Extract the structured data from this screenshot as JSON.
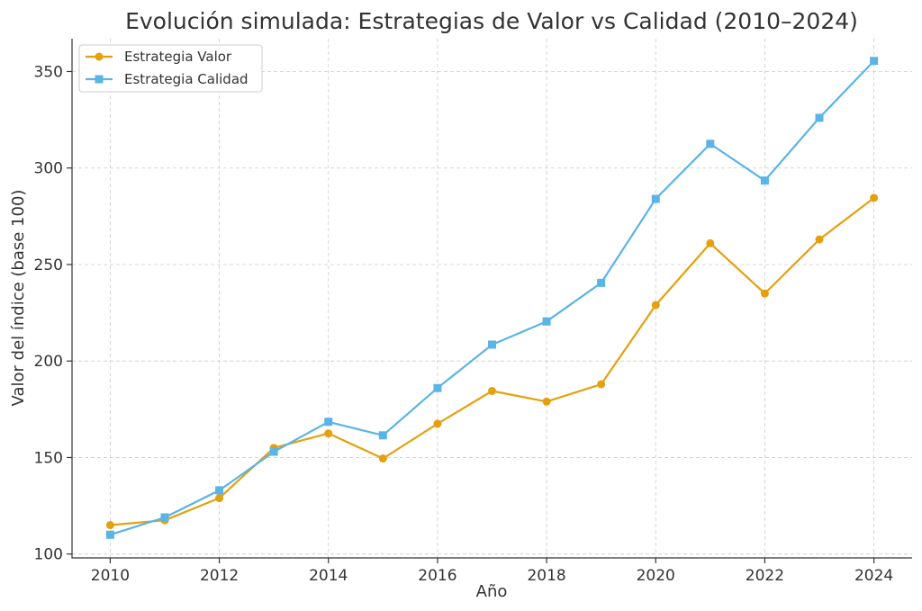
{
  "chart_data": {
    "type": "line",
    "title": "Evolución simulada: Estrategias de Valor vs Calidad (2010–2024)",
    "xlabel": "Año",
    "ylabel": "Valor del índice (base 100)",
    "x": [
      2010,
      2011,
      2012,
      2013,
      2014,
      2015,
      2016,
      2017,
      2018,
      2019,
      2020,
      2021,
      2022,
      2023,
      2024
    ],
    "xticks": [
      2010,
      2012,
      2014,
      2016,
      2018,
      2020,
      2022,
      2024
    ],
    "yticks": [
      100,
      150,
      200,
      250,
      300,
      350
    ],
    "xlim": [
      2009.3,
      2024.7
    ],
    "ylim": [
      98,
      367
    ],
    "grid": true,
    "legend_position": "top-left",
    "series": [
      {
        "name": "Estrategia Valor",
        "color": "#e5a00e",
        "marker": "circle",
        "values": [
          115,
          117.5,
          129,
          155,
          162.5,
          149.5,
          167.5,
          184.5,
          179,
          188,
          229,
          261,
          235,
          263,
          284.5
        ]
      },
      {
        "name": "Estrategia Calidad",
        "color": "#5ab4e5",
        "marker": "square",
        "values": [
          110,
          119,
          133,
          153,
          168.5,
          161.5,
          186,
          208.5,
          220.5,
          240.5,
          284,
          312.5,
          293.5,
          326,
          355.5
        ]
      }
    ]
  }
}
